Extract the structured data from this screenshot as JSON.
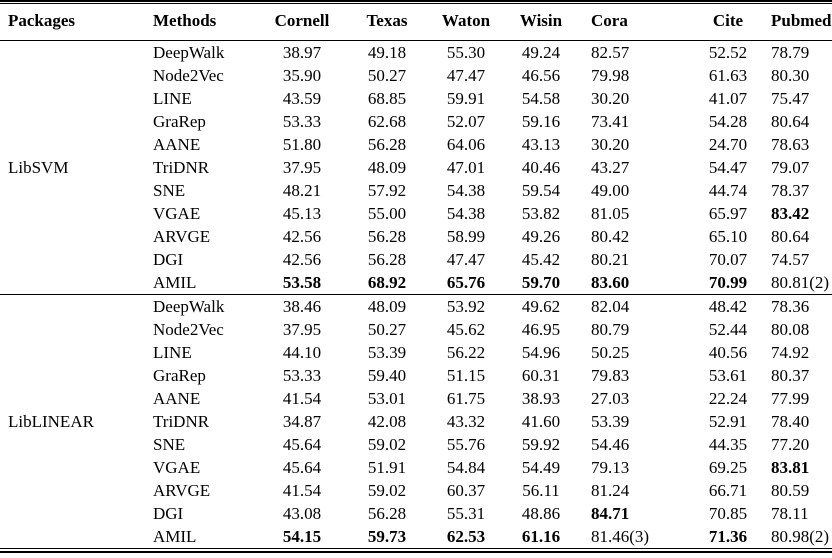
{
  "table": {
    "columns": [
      "Packages",
      "Methods",
      "Cornell",
      "Texas",
      "Waton",
      "Wisin",
      "Cora",
      "Cite",
      "Pubmed"
    ],
    "groups": [
      {
        "package": "LibSVM",
        "rows": [
          {
            "method": "DeepWalk",
            "values": [
              "38.97",
              "49.18",
              "55.30",
              "49.24",
              "82.57",
              "52.52",
              "78.79"
            ],
            "bold": [
              0,
              0,
              0,
              0,
              0,
              0,
              0
            ]
          },
          {
            "method": "Node2Vec",
            "values": [
              "35.90",
              "50.27",
              "47.47",
              "46.56",
              "79.98",
              "61.63",
              "80.30"
            ],
            "bold": [
              0,
              0,
              0,
              0,
              0,
              0,
              0
            ]
          },
          {
            "method": "LINE",
            "values": [
              "43.59",
              "68.85",
              "59.91",
              "54.58",
              "30.20",
              "41.07",
              "75.47"
            ],
            "bold": [
              0,
              0,
              0,
              0,
              0,
              0,
              0
            ]
          },
          {
            "method": "GraRep",
            "values": [
              "53.33",
              "62.68",
              "52.07",
              "59.16",
              "73.41",
              "54.28",
              "80.64"
            ],
            "bold": [
              0,
              0,
              0,
              0,
              0,
              0,
              0
            ]
          },
          {
            "method": "AANE",
            "values": [
              "51.80",
              "56.28",
              "64.06",
              "43.13",
              "30.20",
              "24.70",
              "78.63"
            ],
            "bold": [
              0,
              0,
              0,
              0,
              0,
              0,
              0
            ]
          },
          {
            "method": "TriDNR",
            "values": [
              "37.95",
              "48.09",
              "47.01",
              "40.46",
              "43.27",
              "54.47",
              "79.07"
            ],
            "bold": [
              0,
              0,
              0,
              0,
              0,
              0,
              0
            ]
          },
          {
            "method": "SNE",
            "values": [
              "48.21",
              "57.92",
              "54.38",
              "59.54",
              "49.00",
              "44.74",
              "78.37"
            ],
            "bold": [
              0,
              0,
              0,
              0,
              0,
              0,
              0
            ]
          },
          {
            "method": "VGAE",
            "values": [
              "45.13",
              "55.00",
              "54.38",
              "53.82",
              "81.05",
              "65.97",
              "83.42"
            ],
            "bold": [
              0,
              0,
              0,
              0,
              0,
              0,
              1
            ]
          },
          {
            "method": "ARVGE",
            "values": [
              "42.56",
              "56.28",
              "58.99",
              "49.26",
              "80.42",
              "65.10",
              "80.64"
            ],
            "bold": [
              0,
              0,
              0,
              0,
              0,
              0,
              0
            ]
          },
          {
            "method": "DGI",
            "values": [
              "42.56",
              "56.28",
              "47.47",
              "45.42",
              "80.21",
              "70.07",
              "74.57"
            ],
            "bold": [
              0,
              0,
              0,
              0,
              0,
              0,
              0
            ]
          },
          {
            "method": "AMIL",
            "values": [
              "53.58",
              "68.92",
              "65.76",
              "59.70",
              "83.60",
              "70.99",
              "80.81(2)"
            ],
            "bold": [
              1,
              1,
              1,
              1,
              1,
              1,
              0
            ]
          }
        ]
      },
      {
        "package": "LibLINEAR",
        "rows": [
          {
            "method": "DeepWalk",
            "values": [
              "38.46",
              "48.09",
              "53.92",
              "49.62",
              "82.04",
              "48.42",
              "78.36"
            ],
            "bold": [
              0,
              0,
              0,
              0,
              0,
              0,
              0
            ]
          },
          {
            "method": "Node2Vec",
            "values": [
              "37.95",
              "50.27",
              "45.62",
              "46.95",
              "80.79",
              "52.44",
              "80.08"
            ],
            "bold": [
              0,
              0,
              0,
              0,
              0,
              0,
              0
            ]
          },
          {
            "method": "LINE",
            "values": [
              "44.10",
              "53.39",
              "56.22",
              "54.96",
              "50.25",
              "40.56",
              "74.92"
            ],
            "bold": [
              0,
              0,
              0,
              0,
              0,
              0,
              0
            ]
          },
          {
            "method": "GraRep",
            "values": [
              "53.33",
              "59.40",
              "51.15",
              "60.31",
              "79.83",
              "53.61",
              "80.37"
            ],
            "bold": [
              0,
              0,
              0,
              0,
              0,
              0,
              0
            ]
          },
          {
            "method": "AANE",
            "values": [
              "41.54",
              "53.01",
              "61.75",
              "38.93",
              "27.03",
              "22.24",
              "77.99"
            ],
            "bold": [
              0,
              0,
              0,
              0,
              0,
              0,
              0
            ]
          },
          {
            "method": "TriDNR",
            "values": [
              "34.87",
              "42.08",
              "43.32",
              "41.60",
              "53.39",
              "52.91",
              "78.40"
            ],
            "bold": [
              0,
              0,
              0,
              0,
              0,
              0,
              0
            ]
          },
          {
            "method": "SNE",
            "values": [
              "45.64",
              "59.02",
              "55.76",
              "59.92",
              "54.46",
              "44.35",
              "77.20"
            ],
            "bold": [
              0,
              0,
              0,
              0,
              0,
              0,
              0
            ]
          },
          {
            "method": "VGAE",
            "values": [
              "45.64",
              "51.91",
              "54.84",
              "54.49",
              "79.13",
              "69.25",
              "83.81"
            ],
            "bold": [
              0,
              0,
              0,
              0,
              0,
              0,
              1
            ]
          },
          {
            "method": "ARVGE",
            "values": [
              "41.54",
              "59.02",
              "60.37",
              "56.11",
              "81.24",
              "66.71",
              "80.59"
            ],
            "bold": [
              0,
              0,
              0,
              0,
              0,
              0,
              0
            ]
          },
          {
            "method": "DGI",
            "values": [
              "43.08",
              "56.28",
              "55.31",
              "48.86",
              "84.71",
              "70.85",
              "78.11"
            ],
            "bold": [
              0,
              0,
              0,
              0,
              1,
              0,
              0
            ]
          },
          {
            "method": "AMIL",
            "values": [
              "54.15",
              "59.73",
              "62.53",
              "61.16",
              "81.46(3)",
              "71.36",
              "80.98(2)"
            ],
            "bold": [
              1,
              1,
              1,
              1,
              0,
              1,
              0
            ]
          }
        ]
      }
    ]
  }
}
